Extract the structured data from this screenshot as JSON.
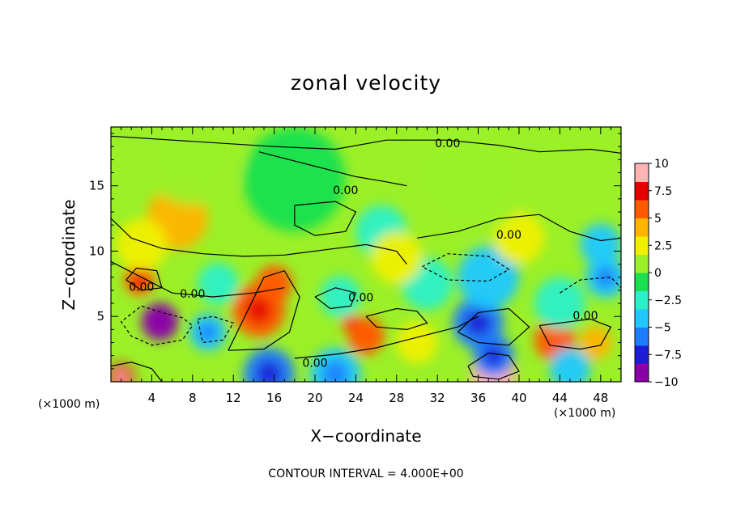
{
  "chart_data": {
    "type": "heatmap",
    "title": "zonal velocity",
    "xlabel": "X−coordinate",
    "ylabel": "Z−coordinate",
    "x_unit_left": "(×1000 m)",
    "x_unit_right": "(×1000 m)",
    "xlim": [
      0,
      50
    ],
    "ylim": [
      0,
      19.5
    ],
    "x_ticks": [
      4,
      8,
      12,
      16,
      20,
      24,
      28,
      32,
      36,
      40,
      44,
      48
    ],
    "y_ticks": [
      5,
      10,
      15
    ],
    "colorbar": {
      "ticks": [
        "10",
        "7.5",
        "5",
        "2.5",
        "0",
        "−2.5",
        "−5",
        "−7.5",
        "−10"
      ],
      "range": [
        -10,
        10
      ],
      "colors": [
        "#8a00a8",
        "#1c1cd6",
        "#1e7cff",
        "#1ec8ff",
        "#2af0c8",
        "#18e050",
        "#9bf028",
        "#f0f000",
        "#ffb400",
        "#ff5a00",
        "#e60000",
        "#ffb4b4"
      ]
    },
    "contour_labels": [
      "0.00",
      "0.00",
      "0.00",
      "0.00",
      "0.00",
      "0.00",
      "0.00",
      "0.00"
    ],
    "contour_interval_text": "CONTOUR INTERVAL = 4.000E+00",
    "features": [
      {
        "x": 37.5,
        "z": 0.5,
        "value": 10,
        "r": 2.2
      },
      {
        "x": 37.5,
        "z": 2.0,
        "value": -6,
        "r": 2.0
      },
      {
        "x": 4.8,
        "z": 4.6,
        "value": -10,
        "r": 1.8
      },
      {
        "x": 9.5,
        "z": 3.8,
        "value": -5,
        "r": 1.8
      },
      {
        "x": 14.5,
        "z": 5.5,
        "value": 6,
        "r": 2.6
      },
      {
        "x": 16.0,
        "z": 7.5,
        "value": 5,
        "r": 1.8
      },
      {
        "x": 2.8,
        "z": 7.8,
        "value": 6,
        "r": 1.5
      },
      {
        "x": 6.5,
        "z": 12.5,
        "value": 3.5,
        "r": 3.0
      },
      {
        "x": 3.0,
        "z": 10.5,
        "value": 2.5,
        "r": 2.5
      },
      {
        "x": 15.5,
        "z": 0.6,
        "value": -6,
        "r": 2.5
      },
      {
        "x": 22.0,
        "z": 0.6,
        "value": -5,
        "r": 2.5
      },
      {
        "x": 1.0,
        "z": 0.4,
        "value": 8,
        "r": 1.3
      },
      {
        "x": 36.0,
        "z": 4.5,
        "value": -6,
        "r": 2.5
      },
      {
        "x": 43.5,
        "z": 3.2,
        "value": 5,
        "r": 2.0
      },
      {
        "x": 47.5,
        "z": 3.0,
        "value": 4,
        "r": 1.6
      },
      {
        "x": 48.5,
        "z": 8.0,
        "value": -5,
        "r": 2.0
      },
      {
        "x": 48.0,
        "z": 10.5,
        "value": -3.5,
        "r": 2.0
      },
      {
        "x": 37.0,
        "z": 8.0,
        "value": -4,
        "r": 3.0
      },
      {
        "x": 31.0,
        "z": 7.5,
        "value": -3,
        "r": 2.5
      },
      {
        "x": 25.0,
        "z": 3.5,
        "value": 5,
        "r": 1.8
      },
      {
        "x": 23.5,
        "z": 4.5,
        "value": 5.5,
        "r": 0.9
      },
      {
        "x": 26.5,
        "z": 11.5,
        "value": -3,
        "r": 2.5
      },
      {
        "x": 40.0,
        "z": 11.0,
        "value": 2.5,
        "r": 2.5
      },
      {
        "x": 28.0,
        "z": 9.5,
        "value": 2.5,
        "r": 2.5
      },
      {
        "x": 18.0,
        "z": 15.5,
        "value": -0.5,
        "r": 5.0
      },
      {
        "x": 35.0,
        "z": 16.0,
        "value": 0.6,
        "r": 6.0
      },
      {
        "x": 8.0,
        "z": 17.5,
        "value": 1.2,
        "r": 5.0
      },
      {
        "x": 22.5,
        "z": 6.5,
        "value": -3,
        "r": 2.0
      },
      {
        "x": 44.0,
        "z": 6.0,
        "value": -2.5,
        "r": 2.5
      },
      {
        "x": 30.0,
        "z": 3.0,
        "value": 3,
        "r": 2.0
      },
      {
        "x": 45.0,
        "z": 1.0,
        "value": -4,
        "r": 2.0
      },
      {
        "x": 10.5,
        "z": 7.5,
        "value": -3,
        "r": 2.0
      }
    ]
  }
}
